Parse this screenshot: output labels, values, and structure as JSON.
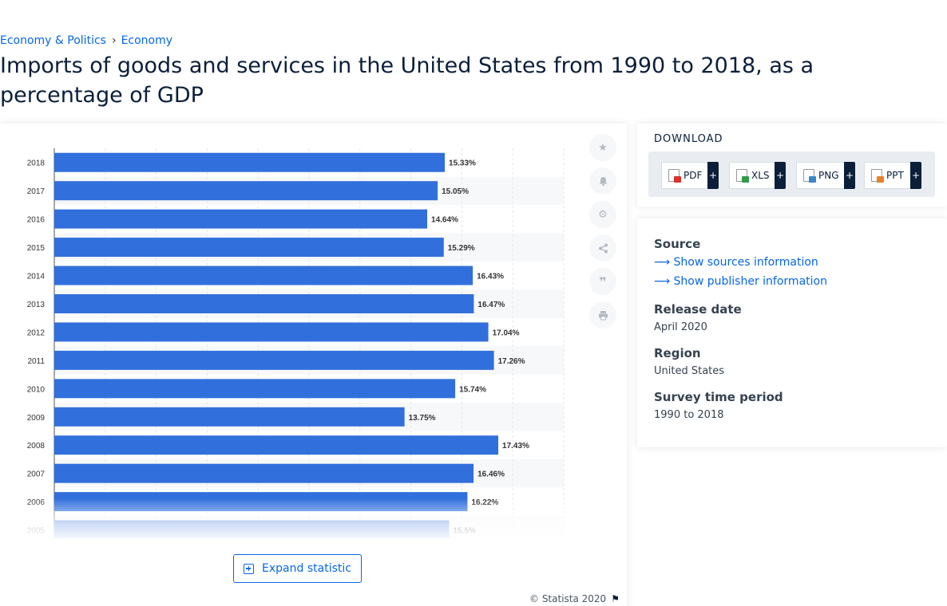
{
  "breadcrumb": {
    "items": [
      "Economy & Politics",
      "Economy"
    ],
    "separator": "›"
  },
  "page_title": "Imports of goods and services in the United States from 1990 to 2018, as a percentage of GDP",
  "colors": {
    "bar": "#316fdc",
    "accent": "#0666e5",
    "title": "#0b1f3a",
    "plus_button": "#0b1f3a"
  },
  "tools": [
    {
      "name": "favorite-button",
      "icon": "star-icon"
    },
    {
      "name": "alert-button",
      "icon": "bell-icon"
    },
    {
      "name": "settings-button",
      "icon": "gear-icon"
    },
    {
      "name": "share-button",
      "icon": "share-icon"
    },
    {
      "name": "cite-button",
      "icon": "quote-icon"
    },
    {
      "name": "print-button",
      "icon": "printer-icon"
    }
  ],
  "expand": {
    "label": "Expand statistic"
  },
  "copyright": "© Statista 2020",
  "download": {
    "heading": "DOWNLOAD",
    "buttons": [
      {
        "label": "PDF",
        "color": "#d8322b"
      },
      {
        "label": "XLS",
        "color": "#2e9d49"
      },
      {
        "label": "PNG",
        "color": "#3f86c8"
      },
      {
        "label": "PPT",
        "color": "#e8802a"
      }
    ],
    "plus": "+"
  },
  "info": {
    "source_label": "Source",
    "show_sources": "Show sources information",
    "show_publisher": "Show publisher information",
    "release_label": "Release date",
    "release_value": "April 2020",
    "region_label": "Region",
    "region_value": "United States",
    "survey_label": "Survey time period",
    "survey_value": "1990 to 2018"
  },
  "chart_data": {
    "type": "bar",
    "orientation": "horizontal",
    "categories": [
      "2018",
      "2017",
      "2016",
      "2015",
      "2014",
      "2013",
      "2012",
      "2011",
      "2010",
      "2009",
      "2008",
      "2007",
      "2006",
      "2005"
    ],
    "values": [
      15.33,
      15.05,
      14.64,
      15.29,
      16.43,
      16.47,
      17.04,
      17.26,
      15.74,
      13.75,
      17.43,
      16.46,
      16.22,
      15.5
    ],
    "labels": [
      "15.33%",
      "15.05%",
      "14.64%",
      "15.29%",
      "16.43%",
      "16.47%",
      "17.04%",
      "17.26%",
      "15.74%",
      "13.75%",
      "17.43%",
      "16.46%",
      "16.22%",
      "15.5%"
    ],
    "xlim": [
      0,
      20
    ],
    "grid": true,
    "title": "",
    "xlabel": "",
    "ylabel": ""
  }
}
